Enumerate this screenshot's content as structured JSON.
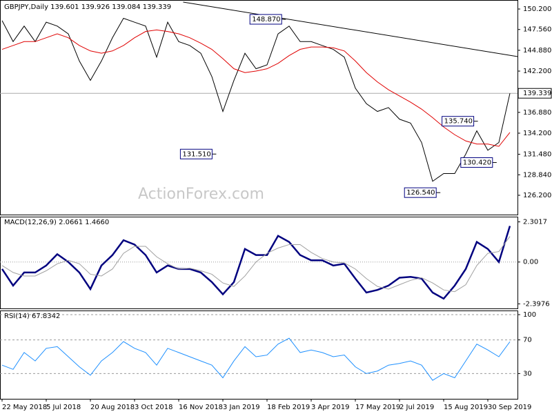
{
  "chart_data": [
    {
      "type": "line",
      "title": "GBPJPY,Daily  139.601 139.926 139.084 139.339",
      "watermark": "ActionForex.com",
      "ylim": [
        123.71,
        151.36
      ],
      "yticks": [
        {
          "value": 150.2,
          "label": "150.200"
        },
        {
          "value": 147.56,
          "label": "147.560"
        },
        {
          "value": 144.88,
          "label": "144.880"
        },
        {
          "value": 142.2,
          "label": "142.200"
        },
        {
          "value": 136.88,
          "label": "136.880"
        },
        {
          "value": 134.2,
          "label": "134.200"
        },
        {
          "value": 131.48,
          "label": "131.480"
        },
        {
          "value": 128.84,
          "label": "128.840"
        },
        {
          "value": 126.2,
          "label": "126.200"
        }
      ],
      "grid": false,
      "series": [
        {
          "color": "#000000",
          "values": [
            148.7,
            146.0,
            148.0,
            146.0,
            148.5,
            148.0,
            147.0,
            143.5,
            141.0,
            143.5,
            146.5,
            149.0,
            148.5,
            148.0,
            144.0,
            148.5,
            146.0,
            145.5,
            144.5,
            141.5,
            137.0,
            141.0,
            144.5,
            142.5,
            143.0,
            147.0,
            148.0,
            146.0,
            146.0,
            145.5,
            145.0,
            144.0,
            140.0,
            138.0,
            137.0,
            137.5,
            136.0,
            135.5,
            133.0,
            128.0,
            129.0,
            129.0,
            131.5,
            134.5,
            132.0,
            133.0,
            139.339
          ]
        },
        {
          "color": "#e00000",
          "values": [
            145.0,
            145.5,
            146.0,
            146.0,
            146.5,
            147.0,
            146.5,
            145.5,
            144.8,
            144.5,
            144.8,
            145.5,
            146.5,
            147.3,
            147.5,
            147.3,
            147.0,
            146.5,
            145.8,
            145.0,
            143.8,
            142.5,
            142.0,
            142.2,
            142.5,
            143.2,
            144.2,
            145.0,
            145.3,
            145.3,
            145.2,
            144.8,
            143.5,
            142.0,
            140.8,
            139.8,
            139.0,
            138.2,
            137.3,
            136.2,
            135.0,
            134.0,
            133.2,
            132.8,
            132.8,
            132.5,
            134.3
          ]
        }
      ],
      "trendline": {
        "x": [
          16.4,
          46.7
        ],
        "values": [
          151.09,
          144.07
        ],
        "color": "#000000"
      },
      "current_price": 139.339,
      "annotations": [
        {
          "x": 25.7,
          "value": 148.87,
          "label": "148.870"
        },
        {
          "x": 19.4,
          "value": 131.51,
          "label": "131.510"
        },
        {
          "x": 43.1,
          "value": 135.74,
          "label": "135.740"
        },
        {
          "x": 44.8,
          "value": 130.42,
          "label": "130.420"
        },
        {
          "x": 39.7,
          "value": 126.54,
          "label": "126.540"
        }
      ]
    },
    {
      "type": "line",
      "title": "MACD(12,26,9) 2.0661 1.4660",
      "ylim": [
        -2.66,
        2.6
      ],
      "yticks": [
        2.3017,
        {
          "value": 0,
          "label": "0.00"
        },
        -2.3976
      ],
      "grid": false,
      "zero_line": true,
      "series": [
        {
          "color": "#00007f",
          "width": 2.5,
          "values": [
            -0.4,
            -1.35,
            -0.6,
            -0.6,
            -0.2,
            0.45,
            0,
            -0.6,
            -1.55,
            -0.2,
            0.4,
            1.25,
            1.0,
            0.4,
            -0.6,
            -0.2,
            -0.4,
            -0.4,
            -0.6,
            -1.15,
            -1.85,
            -1.15,
            0.75,
            0.4,
            0.4,
            1.5,
            1.15,
            0.4,
            0.1,
            0.1,
            -0.2,
            -0.1,
            -0.95,
            -1.75,
            -1.6,
            -1.35,
            -0.9,
            -0.85,
            -0.95,
            -1.75,
            -2.1,
            -1.35,
            -0.4,
            1.15,
            0.75,
            0,
            2.0661
          ]
        },
        {
          "color": "#a0a0a0",
          "width": 1,
          "values": [
            -0.2,
            -0.6,
            -0.8,
            -0.8,
            -0.5,
            -0.1,
            0.1,
            -0.1,
            -0.7,
            -0.8,
            -0.4,
            0.5,
            0.9,
            0.9,
            0.3,
            -0.1,
            -0.4,
            -0.35,
            -0.5,
            -0.7,
            -1.2,
            -1.4,
            -0.8,
            0,
            0.5,
            0.8,
            1.0,
            1.0,
            0.55,
            0.2,
            0,
            -0.05,
            -0.4,
            -0.95,
            -1.4,
            -1.55,
            -1.3,
            -1.05,
            -0.9,
            -1.2,
            -1.6,
            -1.7,
            -1.3,
            -0.2,
            0.5,
            0.6,
            1.466
          ]
        }
      ]
    },
    {
      "type": "line",
      "title": "RSI(14) 67.8342",
      "ylim": [
        0,
        100
      ],
      "yticks": [
        100,
        70,
        30
      ],
      "grid": true,
      "categories": [
        "22 May 2018",
        null,
        null,
        null,
        "5 Jul 2018",
        null,
        null,
        null,
        "20 Aug 2018",
        null,
        null,
        null,
        "3 Oct 2018",
        null,
        null,
        null,
        "16 Nov 2018",
        null,
        null,
        null,
        "3 Jan 2019",
        null,
        null,
        null,
        "18 Feb 2019",
        null,
        null,
        null,
        "3 Apr 2019",
        null,
        null,
        null,
        "17 May 2019",
        null,
        null,
        null,
        "2 Jul 2019",
        null,
        null,
        null,
        "15 Aug 2019",
        null,
        null,
        null,
        "30 Sep 2019",
        null,
        null
      ],
      "series": [
        {
          "color": "#1e90ff",
          "width": 1,
          "values": [
            40,
            35,
            55,
            45,
            60,
            62,
            50,
            38,
            28,
            45,
            55,
            68,
            60,
            55,
            40,
            60,
            55,
            50,
            45,
            40,
            25,
            45,
            62,
            50,
            52,
            65,
            72,
            55,
            58,
            55,
            50,
            52,
            38,
            30,
            33,
            40,
            42,
            45,
            40,
            22,
            30,
            25,
            45,
            65,
            58,
            50,
            67.8342
          ]
        }
      ]
    }
  ]
}
